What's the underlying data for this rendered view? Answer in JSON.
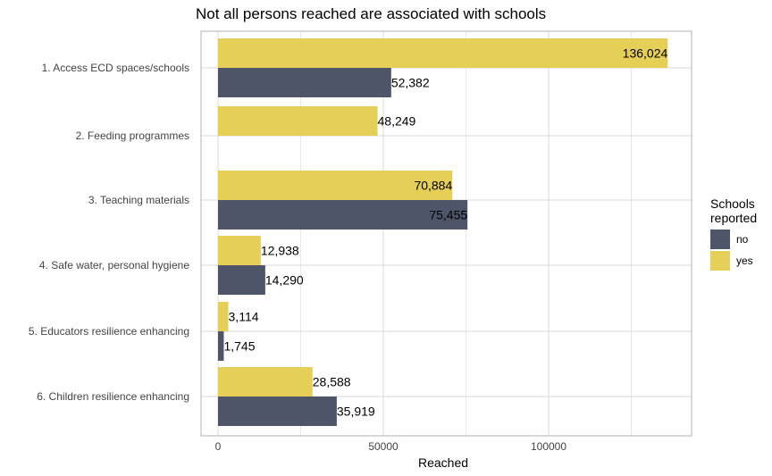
{
  "chart_data": {
    "type": "bar",
    "orientation": "horizontal",
    "title": "Not all persons reached are associated with schools",
    "xlabel": "Reached",
    "ylabel": "",
    "xlim": [
      0,
      142000
    ],
    "xticks": [
      "0",
      "50000",
      "100000"
    ],
    "xtick_values": [
      0,
      50000,
      100000
    ],
    "categories": [
      "1. Access ECD spaces/schools",
      "2. Feeding programmes",
      "3. Teaching materials",
      "4. Safe water, personal hygiene",
      "5. Educators resilience enhancing",
      "6. Children resilience enhancing"
    ],
    "series": [
      {
        "name": "no",
        "color": "#4e5569",
        "values": [
          52382,
          null,
          75455,
          14290,
          1745,
          35919
        ],
        "labels": [
          "52,382",
          "",
          "75,455",
          "14,290",
          "1,745",
          "35,919"
        ]
      },
      {
        "name": "yes",
        "color": "#e6cf56",
        "values": [
          136024,
          48249,
          70884,
          12938,
          3114,
          28588
        ],
        "labels": [
          "136,024",
          "48,249",
          "70,884",
          "12,938",
          "3,114",
          "28,588"
        ]
      }
    ],
    "legend": {
      "title": "Schools\nreported",
      "position": "right",
      "items": [
        "no",
        "yes"
      ]
    },
    "grid": true,
    "background": "#ffffff",
    "grid_color": "#d9d9d9"
  }
}
